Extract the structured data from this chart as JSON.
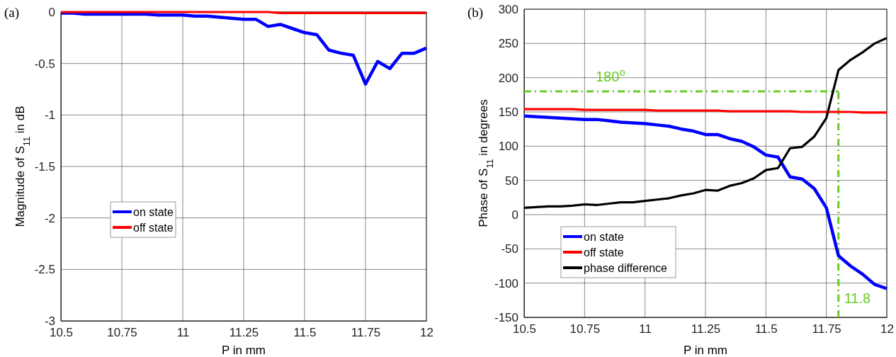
{
  "chart_data": [
    {
      "type": "line",
      "title": "(a)",
      "xlabel": "P in mm",
      "ylabel": "Magnitude of S$_{11}$ in dB",
      "x": [
        10.5,
        10.55,
        10.6,
        10.65,
        10.7,
        10.75,
        10.8,
        10.85,
        10.9,
        10.95,
        11,
        11.05,
        11.1,
        11.15,
        11.2,
        11.25,
        11.3,
        11.35,
        11.4,
        11.45,
        11.5,
        11.55,
        11.6,
        11.65,
        11.7,
        11.75,
        11.8,
        11.85,
        11.9,
        11.95,
        12
      ],
      "series": [
        {
          "name": "on state",
          "color": "#0000ff",
          "values": [
            -0.01,
            -0.01,
            -0.02,
            -0.02,
            -0.02,
            -0.02,
            -0.02,
            -0.02,
            -0.03,
            -0.03,
            -0.03,
            -0.04,
            -0.04,
            -0.05,
            -0.06,
            -0.07,
            -0.07,
            -0.14,
            -0.12,
            -0.16,
            -0.2,
            -0.22,
            -0.37,
            -0.4,
            -0.42,
            -0.7,
            -0.48,
            -0.55,
            -0.4,
            -0.4,
            -0.35
          ]
        },
        {
          "name": "off state",
          "color": "#ff0000",
          "values": [
            0,
            0,
            0,
            0,
            0,
            0,
            0,
            0,
            0,
            0,
            0,
            0,
            0,
            0,
            0,
            0,
            0,
            0,
            -0.01,
            -0.01,
            -0.01,
            -0.01,
            -0.01,
            -0.01,
            -0.01,
            -0.01,
            -0.01,
            -0.01,
            -0.01,
            -0.01,
            -0.01
          ]
        }
      ],
      "xlim": [
        10.5,
        12
      ],
      "xticks": [
        10.5,
        10.75,
        11,
        11.25,
        11.5,
        11.75,
        12
      ],
      "ylim": [
        -3,
        0
      ],
      "yticks": [
        -3,
        -2.5,
        -2,
        -1.5,
        -1,
        -0.5,
        0
      ],
      "grid": true,
      "legend": "left",
      "line_style": "solid",
      "marker": "none"
    },
    {
      "type": "line",
      "title": "(b)",
      "xlabel": "P in mm",
      "ylabel": "Phase of S$_{11}$ in degrees",
      "x": [
        10.5,
        10.55,
        10.6,
        10.65,
        10.7,
        10.75,
        10.8,
        10.85,
        10.9,
        10.95,
        11,
        11.05,
        11.1,
        11.15,
        11.2,
        11.25,
        11.3,
        11.35,
        11.4,
        11.45,
        11.5,
        11.55,
        11.6,
        11.65,
        11.7,
        11.75,
        11.8,
        11.85,
        11.9,
        11.95,
        12
      ],
      "series": [
        {
          "name": "on state",
          "color": "#0000ff",
          "values": [
            144,
            143,
            142,
            141,
            140,
            139,
            139,
            137,
            135,
            134,
            133,
            131,
            129,
            125,
            122,
            117,
            117,
            111,
            107,
            99,
            87,
            84,
            55,
            52,
            38,
            10,
            -60,
            -75,
            -87,
            -102,
            -108
          ]
        },
        {
          "name": "off state",
          "color": "#ff0000",
          "values": [
            154,
            154,
            154,
            154,
            154,
            153,
            153,
            153,
            153,
            153,
            153,
            152,
            152,
            152,
            152,
            152,
            152,
            151,
            151,
            151,
            151,
            151,
            151,
            150,
            150,
            150,
            150,
            150,
            149,
            149,
            149
          ]
        },
        {
          "name": "phase difference",
          "color": "#000000",
          "values": [
            10,
            11,
            12,
            12,
            13,
            15,
            14,
            16,
            18,
            18,
            20,
            22,
            24,
            28,
            31,
            36,
            35,
            42,
            46,
            53,
            65,
            68,
            97,
            99,
            114,
            141,
            211,
            226,
            237,
            250,
            258
          ]
        }
      ],
      "ref_lines": [
        {
          "axis": "y",
          "value": 180,
          "label": "180$^{o}$",
          "color": "#66cc22",
          "line_style": "dashed"
        },
        {
          "axis": "x",
          "value": 11.8,
          "label": "11.8",
          "color": "#66cc22",
          "line_style": "dashed"
        }
      ],
      "xlim": [
        10.5,
        12
      ],
      "xticks": [
        10.5,
        10.75,
        11,
        11.25,
        11.5,
        11.75,
        12
      ],
      "ylim": [
        -150,
        300
      ],
      "yticks": [
        -150,
        -100,
        -50,
        0,
        50,
        100,
        150,
        200,
        250,
        300
      ],
      "grid": true,
      "legend": "bottom left",
      "line_style": "solid",
      "marker": "none"
    }
  ]
}
